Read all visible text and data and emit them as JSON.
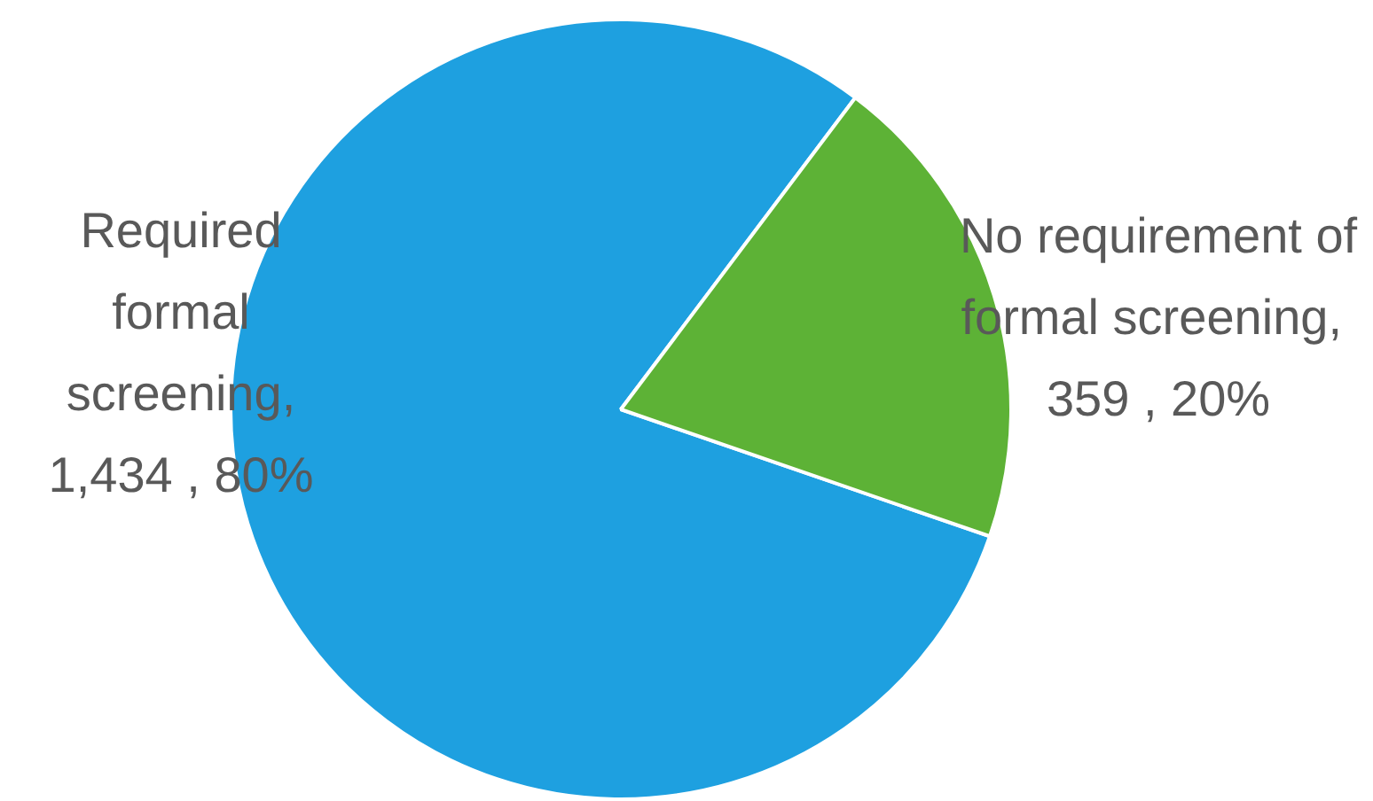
{
  "chart_data": {
    "type": "pie",
    "categories": [
      "Required formal screening",
      "No requirement of formal screening"
    ],
    "values": [
      1434,
      359
    ],
    "value_labels": [
      ", 1,434 , 80%",
      ",  359 , 20%"
    ],
    "colors": [
      "#1ea0e0",
      "#5db236"
    ],
    "legend": false
  }
}
